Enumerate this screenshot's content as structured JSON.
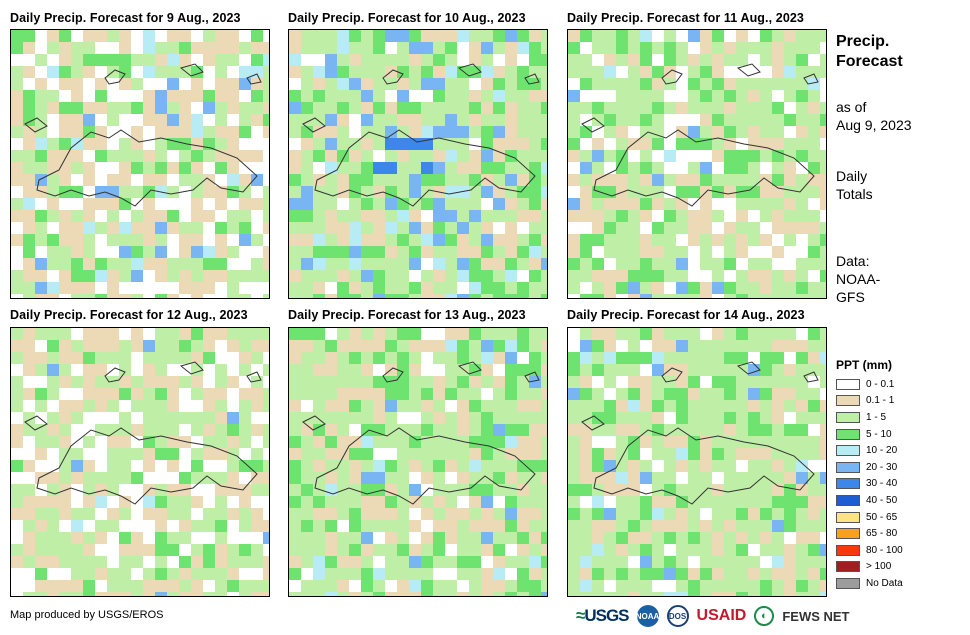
{
  "panels": [
    {
      "title": "Daily Precip. Forecast for 9 Aug., 2023"
    },
    {
      "title": "Daily Precip. Forecast for 10 Aug., 2023"
    },
    {
      "title": "Daily Precip. Forecast for 11 Aug., 2023"
    },
    {
      "title": "Daily Precip. Forecast for 12 Aug., 2023"
    },
    {
      "title": "Daily Precip. Forecast for 13 Aug., 2023"
    },
    {
      "title": "Daily Precip. Forecast for 14 Aug., 2023"
    }
  ],
  "sidebar": {
    "heading_line1": "Precip.",
    "heading_line2": "Forecast",
    "asof_line1": "as of",
    "asof_line2": "Aug 9, 2023",
    "totals_line1": "Daily",
    "totals_line2": "Totals",
    "data_line1": "Data:",
    "data_line2": "NOAA-",
    "data_line3": "GFS"
  },
  "legend": {
    "title": "PPT (mm)",
    "items": [
      {
        "label": "0 - 0.1",
        "color": "#ffffff"
      },
      {
        "label": "0.1 - 1",
        "color": "#ecd9b6"
      },
      {
        "label": "1 - 5",
        "color": "#bfeea6"
      },
      {
        "label": "5 - 10",
        "color": "#6fe36f"
      },
      {
        "label": "10 - 20",
        "color": "#b8ecf5"
      },
      {
        "label": "20 - 30",
        "color": "#79b5f2"
      },
      {
        "label": "30 - 40",
        "color": "#3d86ea"
      },
      {
        "label": "40 - 50",
        "color": "#1f5ed2"
      },
      {
        "label": "50 - 65",
        "color": "#fde28a"
      },
      {
        "label": "65 - 80",
        "color": "#f7a21c"
      },
      {
        "label": "80 - 100",
        "color": "#f53b0c"
      },
      {
        "label": "> 100",
        "color": "#a41d1d"
      },
      {
        "label": "No Data",
        "color": "#9c9c9c"
      }
    ]
  },
  "footer": {
    "credit": "Map produced by USGS/EROS",
    "logos": {
      "usgs": "USGS",
      "noaa": "NOAA",
      "dos": "DOS",
      "usaid_us": "US",
      "usaid_aid": "AID",
      "fews": "FEWS NET"
    }
  }
}
